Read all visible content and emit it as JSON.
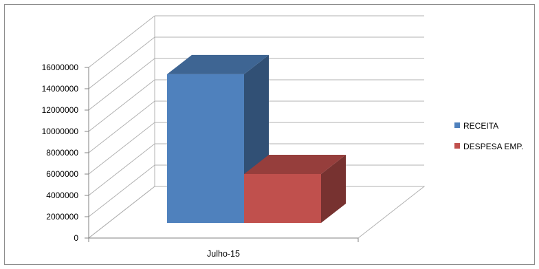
{
  "chart_data": {
    "type": "bar",
    "style": "3d-clustered-column",
    "categories": [
      "Julho-15"
    ],
    "series": [
      {
        "name": "RECEITA",
        "values": [
          14600000
        ],
        "color": "#4f81bd"
      },
      {
        "name": "DESPESA EMP.",
        "values": [
          4800000
        ],
        "color": "#c0504d"
      }
    ],
    "title": "",
    "xlabel": "",
    "ylabel": "",
    "ylim": [
      0,
      16000000
    ],
    "y_ticks": [
      "0",
      "2000000",
      "4000000",
      "6000000",
      "8000000",
      "10000000",
      "12000000",
      "14000000",
      "16000000"
    ],
    "grid": true,
    "legend_position": "right"
  }
}
